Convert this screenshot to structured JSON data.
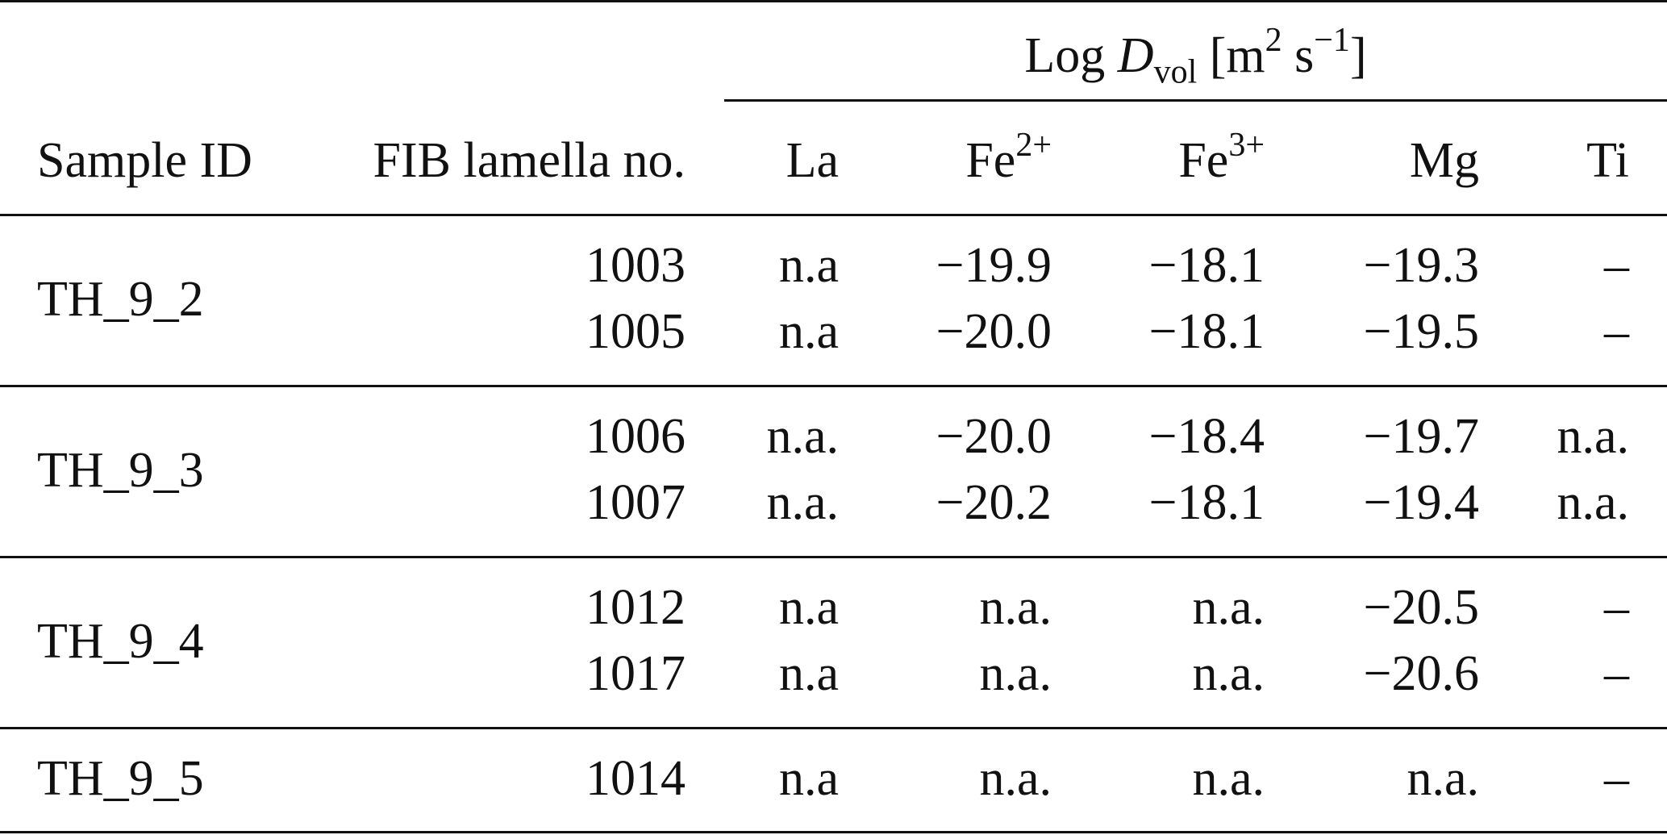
{
  "header": {
    "group_label_prefix": "Log",
    "group_label_symbol": "D",
    "group_label_subscript": "vol",
    "group_label_unit_open": "[m",
    "group_label_unit_exp1": "2",
    "group_label_unit_mid": " s",
    "group_label_unit_exp2": "−1",
    "group_label_unit_close": "]",
    "col_sample": "Sample ID",
    "col_fib": "FIB lamella no.",
    "col_la": "La",
    "col_fe2_base": "Fe",
    "col_fe2_sup": "2+",
    "col_fe3_base": "Fe",
    "col_fe3_sup": "3+",
    "col_mg": "Mg",
    "col_ti": "Ti"
  },
  "groups": [
    {
      "sample": "TH_9_2",
      "rows": [
        {
          "fib": "1003",
          "la": "n.a",
          "fe2": "−19.9",
          "fe3": "−18.1",
          "mg": "−19.3",
          "ti": "–"
        },
        {
          "fib": "1005",
          "la": "n.a",
          "fe2": "−20.0",
          "fe3": "−18.1",
          "mg": "−19.5",
          "ti": "–"
        }
      ]
    },
    {
      "sample": "TH_9_3",
      "rows": [
        {
          "fib": "1006",
          "la": "n.a.",
          "fe2": "−20.0",
          "fe3": "−18.4",
          "mg": "−19.7",
          "ti": "n.a."
        },
        {
          "fib": "1007",
          "la": "n.a.",
          "fe2": "−20.2",
          "fe3": "−18.1",
          "mg": "−19.4",
          "ti": "n.a."
        }
      ]
    },
    {
      "sample": "TH_9_4",
      "rows": [
        {
          "fib": "1012",
          "la": "n.a",
          "fe2": "n.a.",
          "fe3": "n.a.",
          "mg": "−20.5",
          "ti": "–"
        },
        {
          "fib": "1017",
          "la": "n.a",
          "fe2": "n.a.",
          "fe3": "n.a.",
          "mg": "−20.6",
          "ti": "–"
        }
      ]
    },
    {
      "sample": "TH_9_5",
      "rows": [
        {
          "fib": "1014",
          "la": "n.a",
          "fe2": "n.a.",
          "fe3": "n.a.",
          "mg": "n.a.",
          "ti": "–"
        }
      ]
    }
  ]
}
